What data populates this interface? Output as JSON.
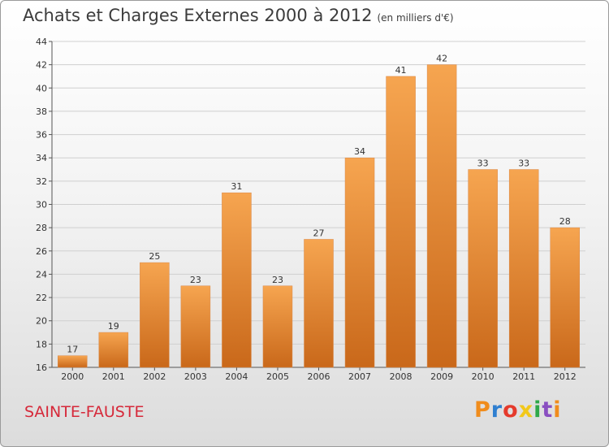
{
  "title": {
    "main": "Achats et Charges Externes 2000 à 2012",
    "unit": "(en milliers d'€)"
  },
  "commune": "SAINTE-FAUSTE",
  "logo": {
    "text": "Proxiti",
    "colors": [
      "#f08c1c",
      "#2f7fd0",
      "#e53a2c",
      "#f2c81a",
      "#2fa84a",
      "#8a4fc1",
      "#f08c1c"
    ]
  },
  "chart_data": {
    "type": "bar",
    "categories": [
      "2000",
      "2001",
      "2002",
      "2003",
      "2004",
      "2005",
      "2006",
      "2007",
      "2008",
      "2009",
      "2010",
      "2011",
      "2012"
    ],
    "values": [
      17,
      19,
      25,
      23,
      31,
      23,
      27,
      34,
      41,
      42,
      33,
      33,
      28
    ],
    "ylim": [
      16,
      44
    ],
    "yticks": [
      16,
      18,
      20,
      22,
      24,
      26,
      28,
      30,
      32,
      34,
      36,
      38,
      40,
      42,
      44
    ],
    "grid": true,
    "bar_color_top": "#f6a550",
    "bar_color_bottom": "#c9681a"
  }
}
